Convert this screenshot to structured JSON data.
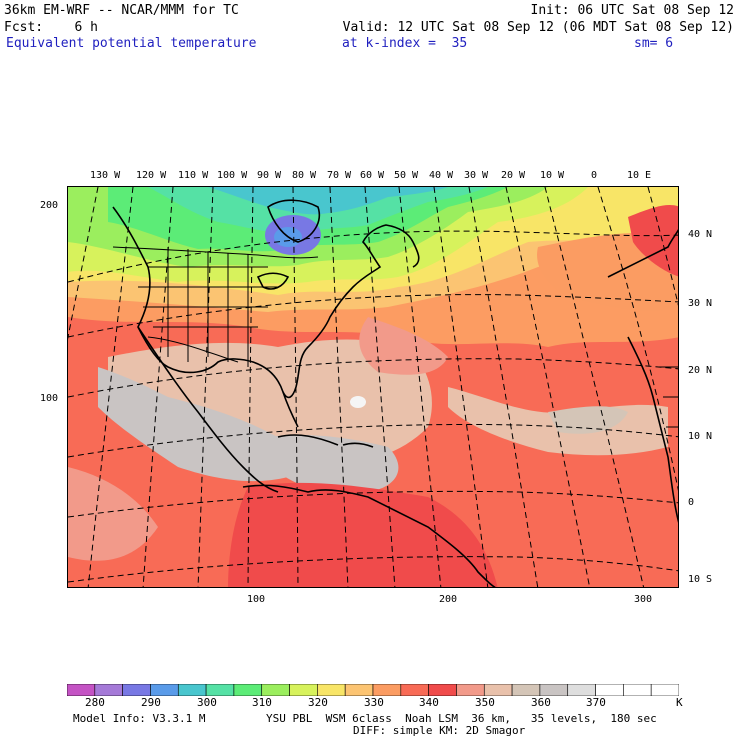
{
  "header": {
    "model_line": "36km EM-WRF -- NCAR/MMM for TC",
    "init": "Init: 06 UTC Sat 08 Sep 12",
    "fcst": "Fcst:    6 h",
    "valid": "Valid: 12 UTC Sat 08 Sep 12 (06 MDT Sat 08 Sep 12)",
    "field": "Equivalent potential temperature",
    "level": "at k-index =  35",
    "smoothing": "sm= 6"
  },
  "map": {
    "lon_labels": [
      "130 W",
      "120 W",
      "110 W",
      "100 W",
      "90 W",
      "80 W",
      "70 W",
      "60 W",
      "50 W",
      "40 W",
      "30 W",
      "20 W",
      "10 W",
      "0",
      "10 E"
    ],
    "lat_labels": [
      "40 N",
      "30 N",
      "20 N",
      "10 N",
      "0",
      "10 S"
    ],
    "grid_x_labels": [
      "100",
      "200",
      "300"
    ],
    "grid_y_labels": [
      "200",
      "100"
    ]
  },
  "colorbar": {
    "levels": [
      "280",
      "290",
      "300",
      "310",
      "320",
      "330",
      "340",
      "350",
      "360",
      "370"
    ],
    "unit": "K",
    "colors": [
      "#c453c4",
      "#a57ad8",
      "#7878e4",
      "#5a9be9",
      "#49c6ce",
      "#55e1a5",
      "#5cec77",
      "#9bee5e",
      "#d7f25c",
      "#f8e567",
      "#fcc472",
      "#fb9c62",
      "#f86b56",
      "#f04b4b",
      "#f29a8a",
      "#e9c1ab",
      "#d4c5b7",
      "#c9c4c3",
      "#dedede",
      "#ffffff",
      "#ffffff",
      "#ffffff"
    ]
  },
  "footer": {
    "model_info": "Model Info: V3.3.1 M",
    "physics1": "YSU PBL  WSM 6class  Noah LSM  36 km,   35 levels,  180 sec",
    "physics2": "DIFF: simple KM: 2D Smagor"
  }
}
